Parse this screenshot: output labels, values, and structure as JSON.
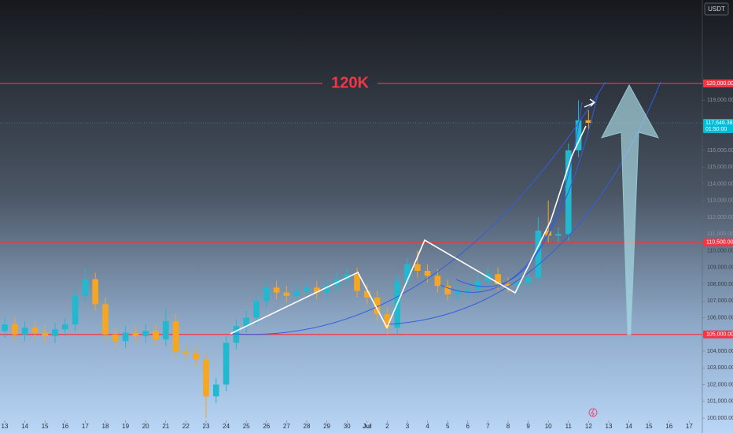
{
  "chart_data": {
    "type": "candlestick",
    "currency": "USDT",
    "annotation": "120K",
    "up_color": "#22b8cf",
    "down_color": "#f5a623",
    "level_color": "#f23645",
    "x": [
      0,
      0.5,
      1,
      1.5,
      2,
      2.5,
      3,
      3.5,
      4,
      4.5,
      5,
      5.5,
      6,
      6.5,
      7,
      7.5,
      8,
      8.5,
      9,
      9.5,
      10,
      10.5,
      11,
      11.5,
      12,
      12.5,
      13,
      13.5,
      14,
      14.5,
      15,
      15.5,
      16,
      16.5,
      17,
      17.5,
      18,
      18.5,
      19,
      19.5,
      20,
      20.5,
      21,
      21.5,
      22,
      22.5,
      23,
      23.5,
      24,
      24.5,
      25,
      25.5,
      26,
      26.5,
      27,
      27.5,
      28,
      28.5,
      29
    ],
    "open": [
      105200,
      105600,
      105000,
      105400,
      105100,
      104900,
      105300,
      105600,
      107300,
      108300,
      106800,
      105000,
      104600,
      105100,
      104900,
      105200,
      104700,
      105800,
      104000,
      103900,
      103500,
      101300,
      102000,
      104500,
      105500,
      106000,
      107000,
      107800,
      107500,
      107300,
      107600,
      107800,
      107500,
      107900,
      108300,
      108600,
      107600,
      107200,
      106200,
      105400,
      108200,
      109200,
      108800,
      108500,
      107900,
      107400,
      107600,
      107700,
      108200,
      108600,
      108000,
      107900,
      108100,
      108400,
      111200,
      110900,
      111000,
      116000,
      117800
    ],
    "high": [
      106000,
      106000,
      105800,
      105800,
      105500,
      105700,
      106000,
      107700,
      109000,
      108700,
      107200,
      105400,
      105500,
      105500,
      105600,
      105600,
      106500,
      106200,
      104400,
      104300,
      103900,
      102400,
      104900,
      105900,
      106400,
      107400,
      108200,
      108200,
      107900,
      108000,
      108200,
      108200,
      108300,
      108700,
      109000,
      109000,
      108000,
      107600,
      106600,
      108600,
      109600,
      110000,
      109200,
      108900,
      108300,
      108000,
      108100,
      108600,
      109000,
      109000,
      108400,
      108500,
      108800,
      112000,
      113000,
      111400,
      116400,
      119000,
      118400
    ],
    "low": [
      104800,
      104600,
      104600,
      104700,
      104500,
      104500,
      104900,
      105200,
      106900,
      106400,
      104600,
      104200,
      104200,
      104500,
      104500,
      104300,
      104300,
      103600,
      103500,
      103100,
      100000,
      100900,
      101600,
      104100,
      105100,
      105600,
      106600,
      107100,
      106900,
      106900,
      107200,
      107100,
      107100,
      107500,
      107900,
      107200,
      106800,
      105800,
      105000,
      105000,
      107800,
      108400,
      108100,
      107500,
      107000,
      107000,
      107200,
      107300,
      107800,
      107600,
      107500,
      107500,
      107700,
      108000,
      110500,
      110500,
      110600,
      115600,
      117200
    ],
    "close": [
      105600,
      105000,
      105400,
      105100,
      104900,
      105300,
      105600,
      107300,
      108300,
      106800,
      105000,
      104600,
      105100,
      104900,
      105200,
      104700,
      105800,
      104000,
      103900,
      103500,
      101300,
      102000,
      104500,
      105500,
      106000,
      107000,
      107800,
      107500,
      107300,
      107600,
      107800,
      107500,
      107900,
      108300,
      108600,
      107600,
      107200,
      106200,
      105400,
      108200,
      109200,
      108800,
      108500,
      107900,
      107400,
      107600,
      107700,
      108200,
      108600,
      108000,
      107900,
      108100,
      108400,
      111200,
      110900,
      111000,
      116000,
      117800,
      117646.38
    ],
    "xlim": [
      -0.234,
      34.65
    ],
    "ylim": [
      99105.9,
      124988.2
    ],
    "xticks": [
      {
        "value": 0,
        "label": "13"
      },
      {
        "value": 1,
        "label": "14"
      },
      {
        "value": 2,
        "label": "15"
      },
      {
        "value": 3,
        "label": "16"
      },
      {
        "value": 4,
        "label": "17"
      },
      {
        "value": 5,
        "label": "18"
      },
      {
        "value": 6,
        "label": "19"
      },
      {
        "value": 7,
        "label": "20"
      },
      {
        "value": 8,
        "label": "21"
      },
      {
        "value": 9,
        "label": "22"
      },
      {
        "value": 10,
        "label": "23"
      },
      {
        "value": 11,
        "label": "24"
      },
      {
        "value": 12,
        "label": "25"
      },
      {
        "value": 13,
        "label": "26"
      },
      {
        "value": 14,
        "label": "27"
      },
      {
        "value": 15,
        "label": "28"
      },
      {
        "value": 16,
        "label": "29"
      },
      {
        "value": 17,
        "label": "30"
      },
      {
        "value": 18,
        "label": "Jul"
      },
      {
        "value": 19,
        "label": "2"
      },
      {
        "value": 20,
        "label": "3"
      },
      {
        "value": 21,
        "label": "4"
      },
      {
        "value": 22,
        "label": "5"
      },
      {
        "value": 23,
        "label": "6"
      },
      {
        "value": 24,
        "label": "7"
      },
      {
        "value": 25,
        "label": "8"
      },
      {
        "value": 26,
        "label": "9"
      },
      {
        "value": 27,
        "label": "10"
      },
      {
        "value": 28,
        "label": "11"
      },
      {
        "value": 29,
        "label": "12"
      },
      {
        "value": 30,
        "label": "13"
      },
      {
        "value": 31,
        "label": "14"
      },
      {
        "value": 32,
        "label": "15"
      },
      {
        "value": 33,
        "label": "16"
      },
      {
        "value": 34,
        "label": "17"
      }
    ],
    "yticks": [
      {
        "value": 100000,
        "label": "100,000.00"
      },
      {
        "value": 101000,
        "label": "101,000.00"
      },
      {
        "value": 102000,
        "label": "102,000.00"
      },
      {
        "value": 103000,
        "label": "103,000.00"
      },
      {
        "value": 104000,
        "label": "104,000.00"
      },
      {
        "value": 106000,
        "label": "106,000.00"
      },
      {
        "value": 107000,
        "label": "107,000.00"
      },
      {
        "value": 108000,
        "label": "108,000.00"
      },
      {
        "value": 109000,
        "label": "109,000.00"
      },
      {
        "value": 110000,
        "label": "110,000.00"
      },
      {
        "value": 111000,
        "label": "111,000.00"
      },
      {
        "value": 112000,
        "label": "112,000.00"
      },
      {
        "value": 113000,
        "label": "113,000.00"
      },
      {
        "value": 114000,
        "label": "114,000.00"
      },
      {
        "value": 115000,
        "label": "115,000.00"
      },
      {
        "value": 116000,
        "label": "116,000.00"
      },
      {
        "value": 119000,
        "label": "119,000.00"
      }
    ],
    "levels": [
      {
        "value": 120000,
        "label": "120,000.00"
      },
      {
        "value": 110500,
        "label": "110,500.00"
      },
      {
        "value": 105000,
        "label": "105,000.00"
      }
    ],
    "last_price": {
      "value": 117646.38,
      "label": "117,646.38"
    },
    "countdown": "01:50:00"
  }
}
